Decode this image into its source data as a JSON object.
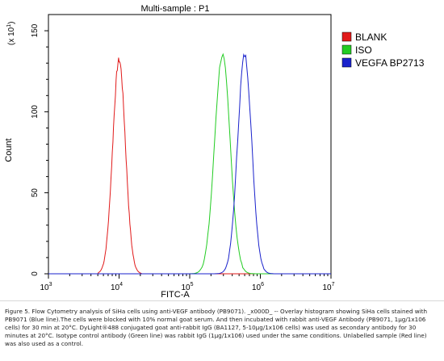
{
  "chart_data": {
    "type": "line",
    "title": "Multi-sample : P1",
    "xlabel": "FITC-A",
    "ylabel": "Count",
    "y_multiplier_label": "(x 10",
    "y_multiplier_exp": "1",
    "y_multiplier_close": ")",
    "xscale": "log",
    "xlim": [
      1000,
      10000000
    ],
    "ylim": [
      0,
      160
    ],
    "x_ticks": [
      {
        "value": 1000,
        "base": "10",
        "exp": "3"
      },
      {
        "value": 10000,
        "base": "10",
        "exp": "4"
      },
      {
        "value": 100000,
        "base": "10",
        "exp": "5"
      },
      {
        "value": 1000000,
        "base": "10",
        "exp": "6"
      },
      {
        "value": 10000000,
        "base": "10",
        "exp": "7"
      }
    ],
    "y_ticks": [
      {
        "value": 0,
        "label": "0"
      },
      {
        "value": 50,
        "label": "50"
      },
      {
        "value": 100,
        "label": "100"
      },
      {
        "value": 150,
        "label": "150"
      }
    ],
    "legend_position": "right",
    "series": [
      {
        "name": "BLANK",
        "color": "#e11a1a",
        "peak_x": 10000,
        "peak_y": 132,
        "width": 0.09,
        "left_start": 5000,
        "right_end": 21000
      },
      {
        "name": "ISO",
        "color": "#22cc22",
        "peak_x": 290000,
        "peak_y": 135,
        "width": 0.11,
        "left_start": 70000,
        "right_end": 1000000
      },
      {
        "name": "VEGFA BP2713",
        "color": "#1a22cc",
        "peak_x": 600000,
        "peak_y": 135,
        "width": 0.1,
        "left_start": 190000,
        "right_end": 1900000
      }
    ]
  },
  "caption": "Figure 5. Flow Cytometry analysis of SiHa cells using anti-VEGF antibody (PB9071). _x000D_ -- Overlay histogram showing SiHa cells stained with PB9071 (Blue line).The cells were blocked with 10% normal goat serum. And then incubated with rabbit anti-VEGF Antibody (PB9071, 1µg/1x106 cells) for 30 min at 20°C. DyLight®488 conjugated goat anti-rabbit IgG (BA1127, 5-10µg/1x106 cells) was used as secondary antibody for 30 minutes at 20°C. Isotype control antibody (Green line) was rabbit IgG (1µg/1x106) used under the same conditions. Unlabelled sample (Red line) was also used as a control."
}
